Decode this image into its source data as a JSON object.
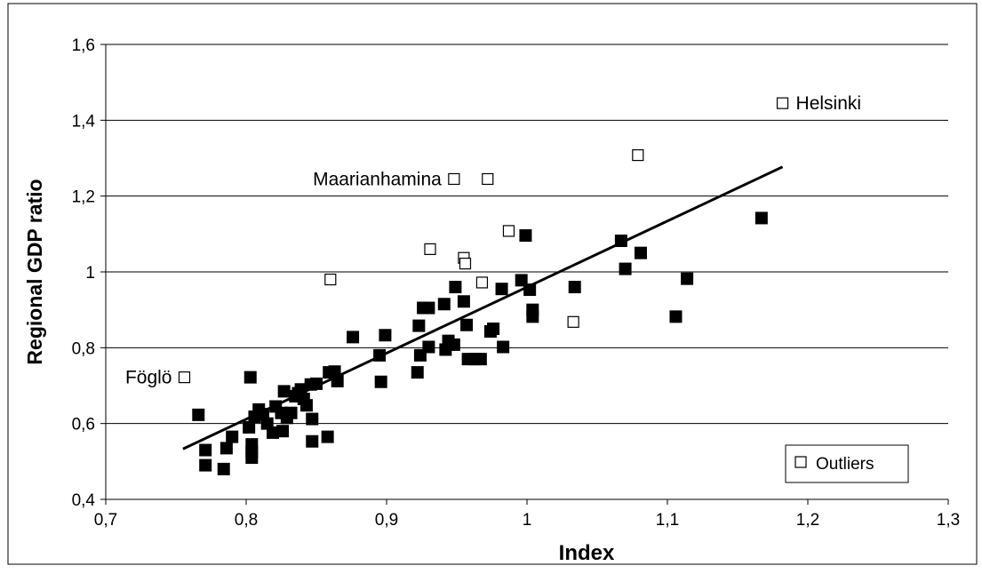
{
  "chart_data": {
    "type": "scatter",
    "title": "",
    "xlabel": "Index",
    "ylabel": "Regional GDP ratio",
    "xlim": [
      0.7,
      1.3
    ],
    "ylim": [
      0.4,
      1.6
    ],
    "x_ticks": [
      "0,7",
      "0,8",
      "0,9",
      "1",
      "1,1",
      "1,2",
      "1,3"
    ],
    "y_ticks": [
      "0,4",
      "0,6",
      "0,8",
      "1",
      "1,2",
      "1,4",
      "1,6"
    ],
    "grid": "horizontal",
    "legend": {
      "position": "bottom-right",
      "entries": [
        "Outliers"
      ]
    },
    "series": [
      {
        "marker": "filled-square",
        "color": "#000000",
        "points": [
          [
            0.766,
            0.623
          ],
          [
            0.771,
            0.53
          ],
          [
            0.771,
            0.49
          ],
          [
            0.784,
            0.48
          ],
          [
            0.786,
            0.535
          ],
          [
            0.79,
            0.565
          ],
          [
            0.802,
            0.59
          ],
          [
            0.803,
            0.722
          ],
          [
            0.804,
            0.545
          ],
          [
            0.804,
            0.525
          ],
          [
            0.804,
            0.51
          ],
          [
            0.806,
            0.618
          ],
          [
            0.809,
            0.637
          ],
          [
            0.812,
            0.625
          ],
          [
            0.815,
            0.6
          ],
          [
            0.819,
            0.576
          ],
          [
            0.821,
            0.645
          ],
          [
            0.825,
            0.628
          ],
          [
            0.826,
            0.58
          ],
          [
            0.827,
            0.685
          ],
          [
            0.829,
            0.615
          ],
          [
            0.832,
            0.628
          ],
          [
            0.835,
            0.672
          ],
          [
            0.837,
            0.68
          ],
          [
            0.839,
            0.69
          ],
          [
            0.841,
            0.665
          ],
          [
            0.843,
            0.648
          ],
          [
            0.846,
            0.703
          ],
          [
            0.847,
            0.612
          ],
          [
            0.847,
            0.553
          ],
          [
            0.85,
            0.705
          ],
          [
            0.858,
            0.565
          ],
          [
            0.859,
            0.735
          ],
          [
            0.863,
            0.737
          ],
          [
            0.865,
            0.712
          ],
          [
            0.876,
            0.828
          ],
          [
            0.895,
            0.78
          ],
          [
            0.896,
            0.71
          ],
          [
            0.899,
            0.833
          ],
          [
            0.922,
            0.735
          ],
          [
            0.923,
            0.858
          ],
          [
            0.924,
            0.78
          ],
          [
            0.926,
            0.905
          ],
          [
            0.93,
            0.905
          ],
          [
            0.93,
            0.802
          ],
          [
            0.941,
            0.915
          ],
          [
            0.942,
            0.795
          ],
          [
            0.944,
            0.818
          ],
          [
            0.948,
            0.808
          ],
          [
            0.949,
            0.96
          ],
          [
            0.955,
            0.922
          ],
          [
            0.957,
            0.86
          ],
          [
            0.958,
            0.77
          ],
          [
            0.963,
            0.77
          ],
          [
            0.967,
            0.77
          ],
          [
            0.974,
            0.843
          ],
          [
            0.976,
            0.85
          ],
          [
            0.982,
            0.955
          ],
          [
            0.983,
            0.802
          ],
          [
            0.996,
            0.978
          ],
          [
            0.999,
            1.096
          ],
          [
            1.002,
            0.953
          ],
          [
            1.004,
            0.9
          ],
          [
            1.004,
            0.882
          ],
          [
            1.034,
            0.96
          ],
          [
            1.067,
            1.082
          ],
          [
            1.07,
            1.008
          ],
          [
            1.081,
            1.05
          ],
          [
            1.106,
            0.882
          ],
          [
            1.114,
            0.982
          ],
          [
            1.167,
            1.142
          ]
        ]
      },
      {
        "name": "Outliers",
        "marker": "open-square",
        "color": "#000000",
        "points": [
          [
            0.756,
            0.722
          ],
          [
            0.86,
            0.98
          ],
          [
            0.931,
            1.06
          ],
          [
            0.948,
            1.245
          ],
          [
            0.955,
            1.037
          ],
          [
            0.956,
            1.022
          ],
          [
            0.968,
            0.972
          ],
          [
            0.972,
            1.245
          ],
          [
            0.987,
            1.108
          ],
          [
            1.033,
            0.868
          ],
          [
            1.079,
            1.308
          ],
          [
            1.182,
            1.445
          ]
        ]
      }
    ],
    "trendline": {
      "x": [
        0.755,
        1.182
      ],
      "y": [
        0.533,
        1.277
      ]
    },
    "annotations": [
      {
        "text": "Helsinki",
        "x": 1.182,
        "y": 1.445,
        "side": "right"
      },
      {
        "text": "Maarianhamina",
        "x": 0.948,
        "y": 1.245,
        "side": "left"
      },
      {
        "text": "Föglö",
        "x": 0.756,
        "y": 0.722,
        "side": "left"
      }
    ]
  }
}
